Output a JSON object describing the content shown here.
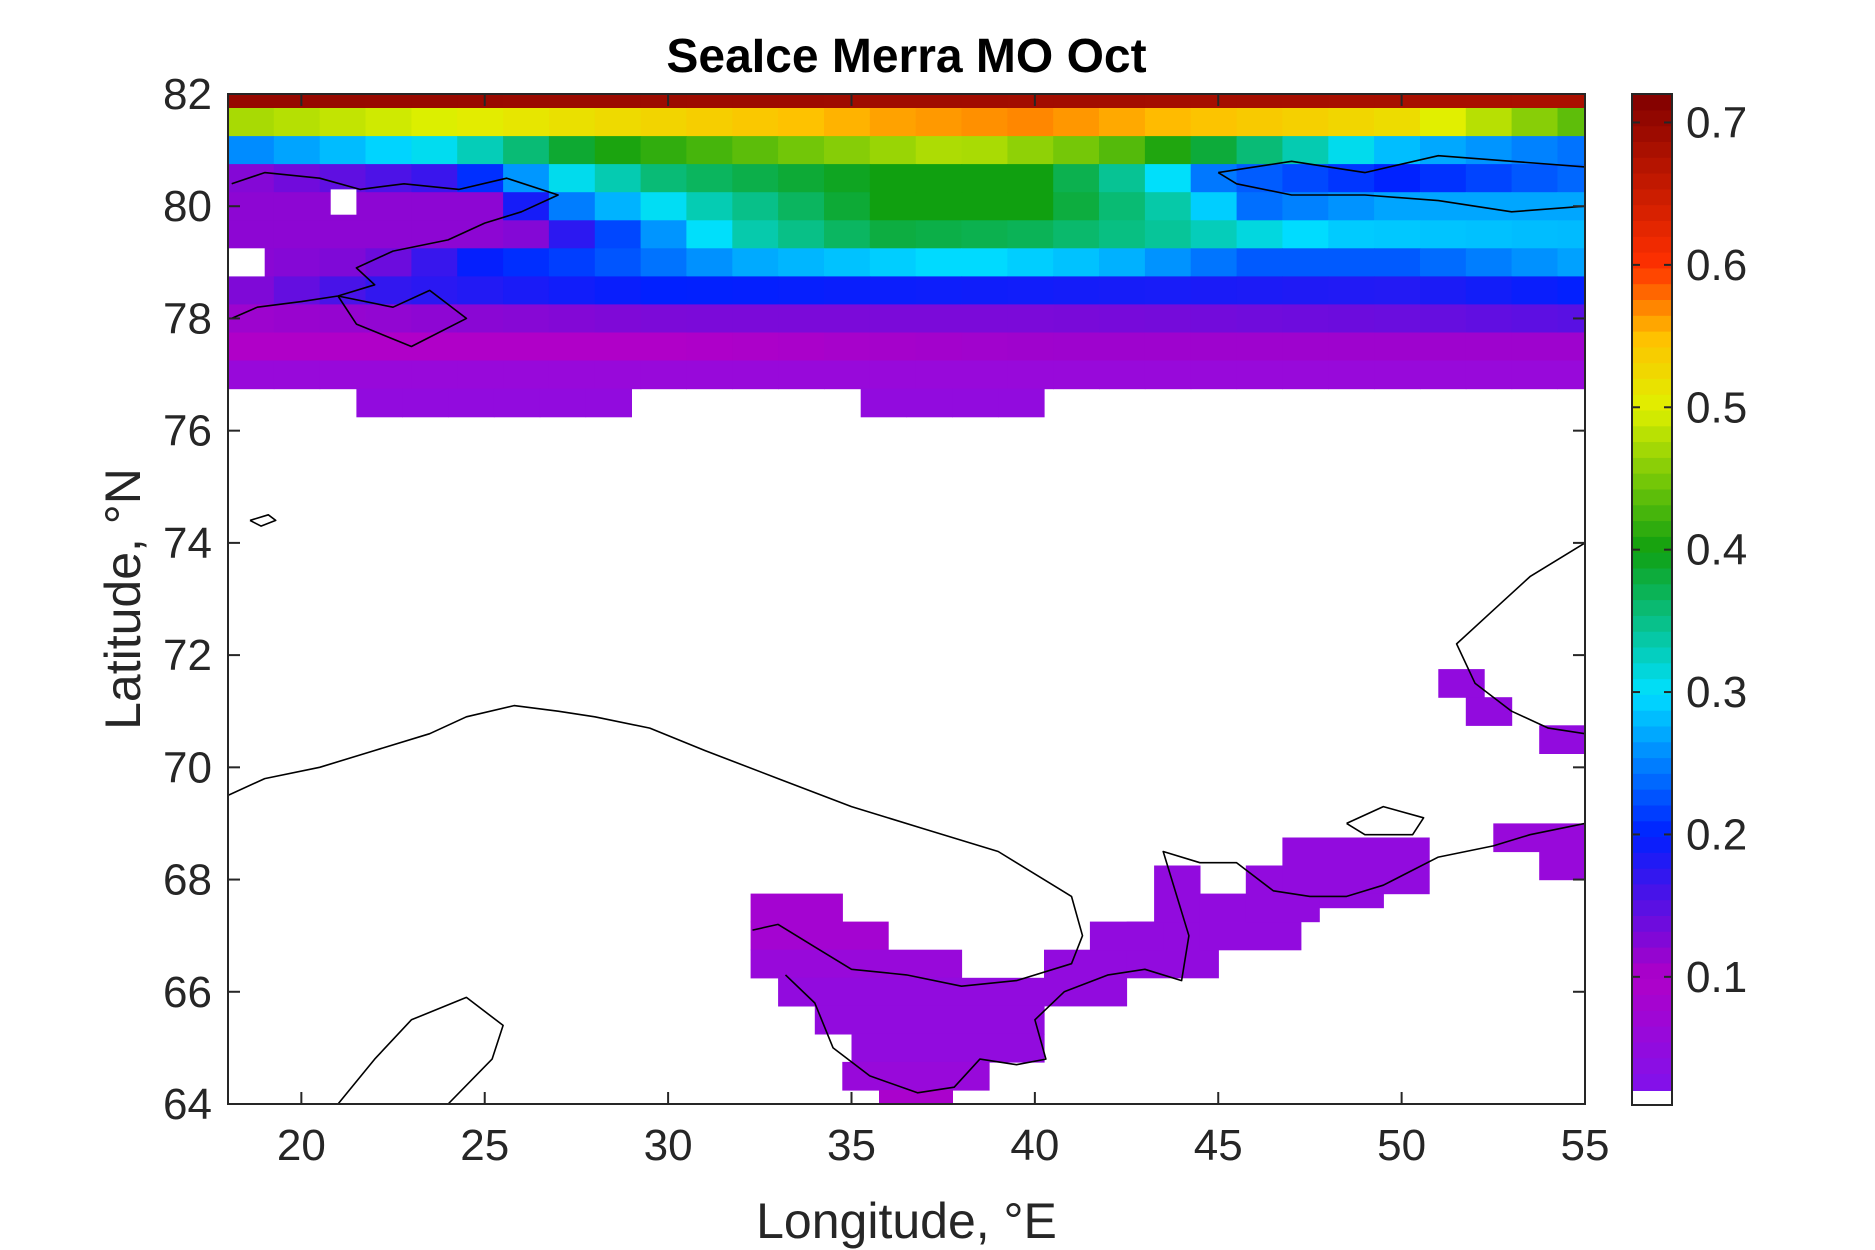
{
  "chart_data": {
    "type": "heatmap",
    "title": "SeaIce Merra MO Oct",
    "xlabel": "Longitude, °E",
    "ylabel": "Latitude, °N",
    "xlim": [
      18,
      55
    ],
    "ylim": [
      64,
      82
    ],
    "xticks": [
      20,
      25,
      30,
      35,
      40,
      45,
      50,
      55
    ],
    "yticks": [
      64,
      66,
      68,
      70,
      72,
      74,
      76,
      78,
      80,
      82
    ],
    "grid": false,
    "colorbar": {
      "position": "right",
      "range": [
        0.01,
        0.72
      ],
      "ticks": [
        0.1,
        0.2,
        0.3,
        0.4,
        0.5,
        0.6,
        0.7
      ],
      "colormap": "jet-like",
      "below_range_color": "#ffffff",
      "stops": [
        {
          "v": 0.01,
          "c": "#7a14f0"
        },
        {
          "v": 0.1,
          "c": "#b000c8"
        },
        {
          "v": 0.2,
          "c": "#0020ff"
        },
        {
          "v": 0.3,
          "c": "#00e0ff"
        },
        {
          "v": 0.4,
          "c": "#10a010"
        },
        {
          "v": 0.5,
          "c": "#e0f000"
        },
        {
          "v": 0.55,
          "c": "#ffc000"
        },
        {
          "v": 0.6,
          "c": "#ff3000"
        },
        {
          "v": 0.72,
          "c": "#800000"
        }
      ]
    },
    "cell_size_deg": {
      "lon": 1.25,
      "lat": 0.5
    },
    "zonal_bands": [
      {
        "lat": [
          81.75,
          82.0
        ],
        "lon": [
          18,
          55
        ],
        "profile": [
          [
            18,
            0.7
          ],
          [
            55,
            0.68
          ]
        ]
      },
      {
        "lat": [
          81.25,
          81.75
        ],
        "lon": [
          18,
          55
        ],
        "profile": [
          [
            18,
            0.47
          ],
          [
            24,
            0.5
          ],
          [
            30,
            0.53
          ],
          [
            36,
            0.56
          ],
          [
            40,
            0.57
          ],
          [
            44,
            0.55
          ],
          [
            50,
            0.52
          ],
          [
            53,
            0.47
          ],
          [
            55,
            0.43
          ]
        ]
      },
      {
        "lat": [
          80.75,
          81.25
        ],
        "lon": [
          18,
          55
        ],
        "profile": [
          [
            18,
            0.25
          ],
          [
            24,
            0.31
          ],
          [
            28,
            0.4
          ],
          [
            34,
            0.45
          ],
          [
            38,
            0.48
          ],
          [
            42,
            0.44
          ],
          [
            46,
            0.36
          ],
          [
            50,
            0.28
          ],
          [
            55,
            0.24
          ]
        ]
      },
      {
        "lat": [
          80.25,
          80.75
        ],
        "lon": [
          18,
          55
        ],
        "profile": [
          [
            18,
            0.12
          ],
          [
            24,
            0.17
          ],
          [
            27,
            0.3
          ],
          [
            30,
            0.36
          ],
          [
            36,
            0.4
          ],
          [
            40,
            0.4
          ],
          [
            43,
            0.33
          ],
          [
            45,
            0.24
          ],
          [
            50,
            0.2
          ],
          [
            55,
            0.24
          ]
        ]
      },
      {
        "lat": [
          79.75,
          80.25
        ],
        "lon": [
          18,
          55
        ],
        "profile": [
          [
            18,
            0.12
          ],
          [
            25,
            0.12
          ],
          [
            27,
            0.24
          ],
          [
            31,
            0.33
          ],
          [
            36,
            0.4
          ],
          [
            40,
            0.4
          ],
          [
            44,
            0.33
          ],
          [
            46,
            0.24
          ],
          [
            50,
            0.27
          ],
          [
            55,
            0.27
          ]
        ]
      },
      {
        "lat": [
          79.25,
          79.75
        ],
        "lon": [
          18,
          55
        ],
        "profile": [
          [
            18,
            0.12
          ],
          [
            26,
            0.12
          ],
          [
            28,
            0.2
          ],
          [
            32,
            0.33
          ],
          [
            36,
            0.38
          ],
          [
            40,
            0.37
          ],
          [
            44,
            0.34
          ],
          [
            48,
            0.29
          ],
          [
            55,
            0.28
          ]
        ]
      },
      {
        "lat": [
          78.75,
          79.25
        ],
        "lon": [
          18,
          55
        ],
        "profile": [
          [
            18,
            0.12
          ],
          [
            22,
            0.13
          ],
          [
            25,
            0.2
          ],
          [
            28,
            0.22
          ],
          [
            32,
            0.27
          ],
          [
            38,
            0.3
          ],
          [
            42,
            0.28
          ],
          [
            46,
            0.23
          ],
          [
            50,
            0.23
          ],
          [
            55,
            0.27
          ]
        ]
      },
      {
        "lat": [
          78.25,
          78.75
        ],
        "lon": [
          18,
          55
        ],
        "profile": [
          [
            18,
            0.12
          ],
          [
            22,
            0.17
          ],
          [
            30,
            0.2
          ],
          [
            40,
            0.19
          ],
          [
            50,
            0.18
          ],
          [
            55,
            0.2
          ]
        ]
      },
      {
        "lat": [
          77.75,
          78.25
        ],
        "lon": [
          18,
          55
        ],
        "profile": [
          [
            18,
            0.11
          ],
          [
            30,
            0.13
          ],
          [
            40,
            0.13
          ],
          [
            50,
            0.14
          ],
          [
            55,
            0.15
          ]
        ]
      },
      {
        "lat": [
          77.25,
          77.75
        ],
        "lon": [
          18,
          55
        ],
        "profile": [
          [
            18,
            0.1
          ],
          [
            30,
            0.1
          ],
          [
            40,
            0.11
          ],
          [
            55,
            0.11
          ]
        ]
      },
      {
        "lat": [
          76.75,
          77.25
        ],
        "lon": [
          18,
          55
        ],
        "profile": [
          [
            18,
            0.06
          ],
          [
            55,
            0.06
          ]
        ]
      },
      {
        "lat": [
          76.25,
          76.75
        ],
        "lon": [
          21.5,
          29
        ],
        "profile": [
          [
            21.5,
            0.05
          ],
          [
            29,
            0.05
          ]
        ]
      },
      {
        "lat": [
          76.25,
          76.75
        ],
        "lon": [
          35.25,
          40.25
        ],
        "profile": [
          [
            35.25,
            0.05
          ],
          [
            40.25,
            0.05
          ]
        ]
      }
    ],
    "missing_cells": [
      {
        "lon": [
          18,
          19
        ],
        "lat": [
          78.75,
          79.25
        ]
      },
      {
        "lon": [
          20.8,
          21.5
        ],
        "lat": [
          79.85,
          80.3
        ]
      }
    ],
    "patches": [
      {
        "lon": [
          32.25,
          34.75
        ],
        "lat": [
          67.25,
          67.75
        ],
        "value": 0.08
      },
      {
        "lon": [
          32.25,
          36
        ],
        "lat": [
          66.75,
          67.25
        ],
        "value": 0.08
      },
      {
        "lon": [
          32.25,
          38
        ],
        "lat": [
          66.25,
          66.75
        ],
        "value": 0.06
      },
      {
        "lon": [
          33.0,
          40.25
        ],
        "lat": [
          65.75,
          66.25
        ],
        "value": 0.05
      },
      {
        "lon": [
          34.0,
          40.25
        ],
        "lat": [
          65.25,
          65.75
        ],
        "value": 0.05
      },
      {
        "lon": [
          35.0,
          40.25
        ],
        "lat": [
          64.75,
          65.25
        ],
        "value": 0.05
      },
      {
        "lon": [
          34.75,
          38.75
        ],
        "lat": [
          64.25,
          64.75
        ],
        "value": 0.06
      },
      {
        "lon": [
          35.75,
          37.75
        ],
        "lat": [
          64.0,
          64.25
        ],
        "value": 0.09
      },
      {
        "lon": [
          40.25,
          42.5
        ],
        "lat": [
          65.75,
          66.75
        ],
        "value": 0.05
      },
      {
        "lon": [
          42.5,
          45
        ],
        "lat": [
          66.25,
          67.25
        ],
        "value": 0.05
      },
      {
        "lon": [
          41.5,
          43.5
        ],
        "lat": [
          66.75,
          67.25
        ],
        "value": 0.05
      },
      {
        "lon": [
          43.25,
          44.5
        ],
        "lat": [
          67.25,
          68.25
        ],
        "value": 0.05
      },
      {
        "lon": [
          44.5,
          47.25
        ],
        "lat": [
          66.75,
          67.75
        ],
        "value": 0.05
      },
      {
        "lon": [
          45.75,
          47.75
        ],
        "lat": [
          67.25,
          68.25
        ],
        "value": 0.05
      },
      {
        "lon": [
          46.75,
          50.75
        ],
        "lat": [
          67.75,
          68.75
        ],
        "value": 0.05
      },
      {
        "lon": [
          47.75,
          49.5
        ],
        "lat": [
          67.5,
          67.75
        ],
        "value": 0.05
      },
      {
        "lon": [
          52.5,
          55
        ],
        "lat": [
          68.5,
          69.0
        ],
        "value": 0.06
      },
      {
        "lon": [
          53.75,
          55
        ],
        "lat": [
          68.0,
          68.5
        ],
        "value": 0.06
      },
      {
        "lon": [
          51.0,
          52.25
        ],
        "lat": [
          71.25,
          71.75
        ],
        "value": 0.05
      },
      {
        "lon": [
          51.75,
          53.0
        ],
        "lat": [
          70.75,
          71.25
        ],
        "value": 0.05
      },
      {
        "lon": [
          53.75,
          55
        ],
        "lat": [
          70.25,
          70.75
        ],
        "value": 0.05
      }
    ],
    "coastlines": [
      {
        "region": "Svalbard west",
        "points": [
          [
            18.1,
            80.4
          ],
          [
            19.0,
            80.6
          ],
          [
            20.5,
            80.5
          ],
          [
            21.6,
            80.3
          ],
          [
            22.8,
            80.4
          ],
          [
            24.3,
            80.3
          ],
          [
            25.6,
            80.5
          ],
          [
            27.0,
            80.2
          ],
          [
            26.0,
            79.9
          ],
          [
            25.0,
            79.7
          ],
          [
            24.0,
            79.4
          ],
          [
            22.5,
            79.2
          ],
          [
            21.5,
            78.9
          ],
          [
            22.0,
            78.6
          ],
          [
            21.0,
            78.4
          ],
          [
            20.0,
            78.3
          ],
          [
            18.8,
            78.2
          ],
          [
            18.1,
            78.0
          ]
        ]
      },
      {
        "region": "Edgeoya",
        "points": [
          [
            21.0,
            78.4
          ],
          [
            22.5,
            78.2
          ],
          [
            23.5,
            78.5
          ],
          [
            24.5,
            78.0
          ],
          [
            23.0,
            77.5
          ],
          [
            21.5,
            77.9
          ],
          [
            21.0,
            78.4
          ]
        ]
      },
      {
        "region": "Franz Josef Land",
        "points": [
          [
            45.0,
            80.6
          ],
          [
            47.0,
            80.8
          ],
          [
            49.0,
            80.6
          ],
          [
            51.0,
            80.9
          ],
          [
            53.0,
            80.8
          ],
          [
            55.0,
            80.7
          ],
          [
            55.0,
            80.0
          ],
          [
            53.0,
            79.9
          ],
          [
            51.0,
            80.1
          ],
          [
            49.0,
            80.2
          ],
          [
            47.0,
            80.2
          ],
          [
            45.5,
            80.4
          ],
          [
            45.0,
            80.6
          ]
        ]
      },
      {
        "region": "Bear Island",
        "points": [
          [
            18.6,
            74.4
          ],
          [
            19.1,
            74.5
          ],
          [
            19.3,
            74.4
          ],
          [
            18.9,
            74.3
          ],
          [
            18.6,
            74.4
          ]
        ]
      },
      {
        "region": "Novaya Zemlya",
        "points": [
          [
            55.0,
            74.0
          ],
          [
            53.5,
            73.4
          ],
          [
            52.5,
            72.8
          ],
          [
            51.5,
            72.2
          ],
          [
            52.0,
            71.5
          ],
          [
            53.0,
            71.0
          ],
          [
            54.0,
            70.7
          ],
          [
            55.0,
            70.6
          ]
        ]
      },
      {
        "region": "Kolguev Island",
        "points": [
          [
            48.5,
            69.0
          ],
          [
            49.5,
            69.3
          ],
          [
            50.6,
            69.1
          ],
          [
            50.3,
            68.8
          ],
          [
            49.0,
            68.8
          ],
          [
            48.5,
            69.0
          ]
        ]
      },
      {
        "region": "Scandinavia north coast and Kola",
        "points": [
          [
            18.0,
            69.5
          ],
          [
            19.0,
            69.8
          ],
          [
            20.5,
            70.0
          ],
          [
            22.0,
            70.3
          ],
          [
            23.5,
            70.6
          ],
          [
            24.5,
            70.9
          ],
          [
            25.8,
            71.1
          ],
          [
            27.0,
            71.0
          ],
          [
            28.0,
            70.9
          ],
          [
            29.5,
            70.7
          ],
          [
            31.0,
            70.3
          ],
          [
            33.0,
            69.8
          ],
          [
            35.0,
            69.3
          ],
          [
            37.0,
            68.9
          ],
          [
            39.0,
            68.5
          ],
          [
            41.0,
            67.7
          ],
          [
            41.3,
            67.0
          ],
          [
            41.0,
            66.5
          ],
          [
            39.5,
            66.2
          ],
          [
            38.0,
            66.1
          ],
          [
            36.5,
            66.3
          ],
          [
            35.0,
            66.4
          ],
          [
            34.0,
            66.8
          ],
          [
            33.0,
            67.2
          ],
          [
            32.3,
            67.1
          ]
        ]
      },
      {
        "region": "White Sea south and Kanin",
        "points": [
          [
            33.2,
            66.3
          ],
          [
            34.0,
            65.8
          ],
          [
            34.5,
            65.0
          ],
          [
            35.5,
            64.5
          ],
          [
            36.8,
            64.2
          ],
          [
            37.8,
            64.3
          ],
          [
            38.5,
            64.8
          ],
          [
            39.5,
            64.7
          ],
          [
            40.3,
            64.8
          ],
          [
            40.0,
            65.5
          ],
          [
            40.8,
            66.0
          ],
          [
            42.0,
            66.3
          ],
          [
            43.0,
            66.4
          ],
          [
            44.0,
            66.2
          ],
          [
            44.2,
            67.0
          ],
          [
            43.5,
            68.5
          ],
          [
            44.5,
            68.3
          ],
          [
            45.5,
            68.3
          ],
          [
            46.5,
            67.8
          ],
          [
            47.5,
            67.7
          ],
          [
            48.5,
            67.7
          ],
          [
            49.5,
            67.9
          ],
          [
            51.0,
            68.4
          ],
          [
            52.5,
            68.6
          ],
          [
            53.5,
            68.8
          ],
          [
            55.0,
            69.0
          ]
        ]
      },
      {
        "region": "Gulf of Bothnia north",
        "points": [
          [
            21.0,
            64.0
          ],
          [
            22.0,
            64.8
          ],
          [
            23.0,
            65.5
          ],
          [
            24.5,
            65.9
          ],
          [
            25.5,
            65.4
          ],
          [
            25.2,
            64.8
          ],
          [
            24.0,
            64.0
          ]
        ]
      }
    ]
  }
}
